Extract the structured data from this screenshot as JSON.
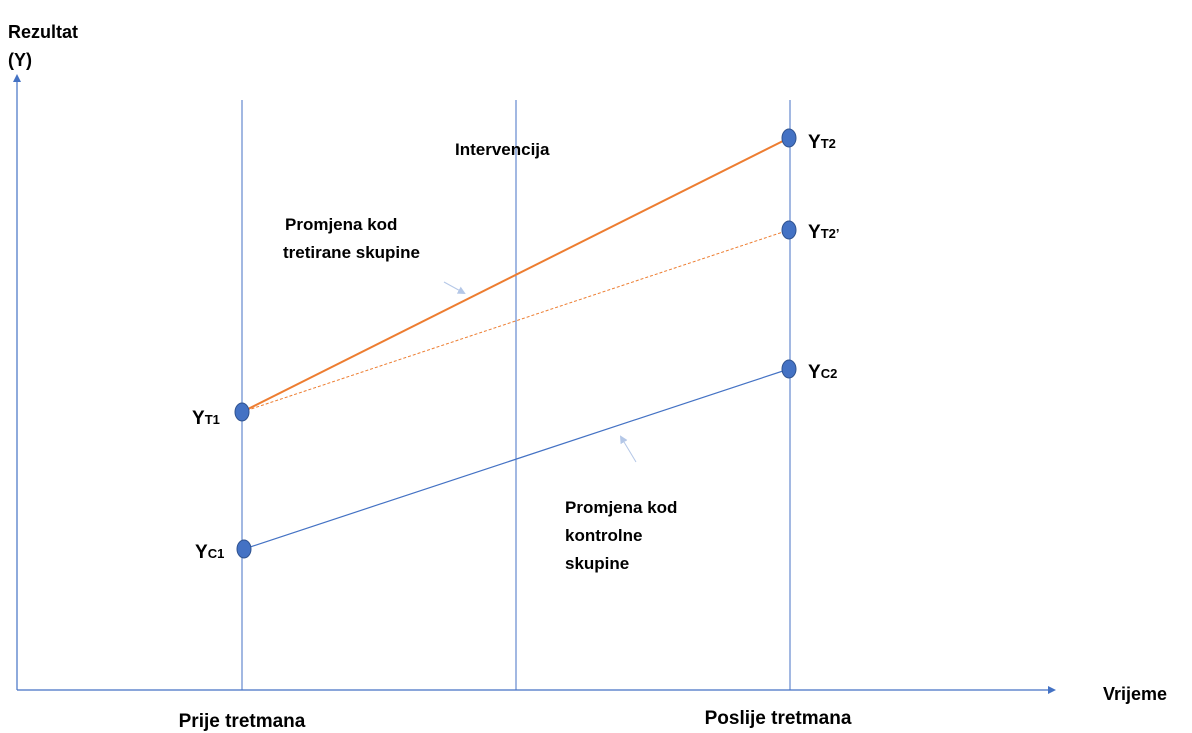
{
  "axes": {
    "y_label": [
      "Rezultat",
      "(Y)"
    ],
    "x_label": "Vrijeme"
  },
  "periods": [
    "Prije tretmana",
    "Poslije tretmana"
  ],
  "intervention": "Intervencija",
  "points": [
    {
      "main": "Y",
      "sub": "T1"
    },
    {
      "main": "Y",
      "sub": "C1"
    },
    {
      "main": "Y",
      "sub": "T2"
    },
    {
      "main": "Y",
      "sub": "T2’"
    },
    {
      "main": "Y",
      "sub": "C2"
    }
  ],
  "annotations": [
    [
      "Promjena kod",
      "tretirane skupine"
    ],
    [
      "Promjena kod",
      "kontrolne",
      "skupine"
    ]
  ]
}
